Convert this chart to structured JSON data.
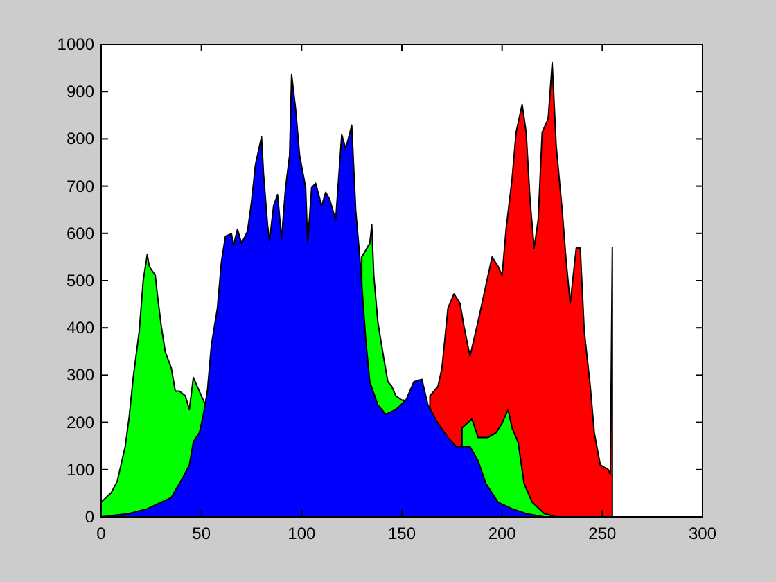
{
  "chart_data": {
    "type": "area",
    "xlim": [
      0,
      300
    ],
    "ylim": [
      0,
      1000
    ],
    "xticks": [
      0,
      50,
      100,
      150,
      200,
      250,
      300
    ],
    "yticks": [
      0,
      100,
      200,
      300,
      400,
      500,
      600,
      700,
      800,
      900,
      1000
    ],
    "grid": false,
    "series": [
      {
        "color": "#ff0000",
        "x": [
          164,
          168,
          170,
          173,
          176,
          179,
          181,
          184,
          188,
          191,
          195,
          198,
          200,
          202,
          205,
          207,
          210,
          212,
          214,
          216,
          218,
          220,
          223,
          225,
          227,
          230,
          232,
          234,
          237,
          239,
          241,
          244,
          246,
          249,
          253,
          254,
          255
        ],
        "values": [
          256,
          276,
          315,
          442,
          472,
          452,
          403,
          340,
          413,
          472,
          550,
          530,
          511,
          609,
          716,
          814,
          873,
          814,
          667,
          569,
          628,
          814,
          843,
          961,
          785,
          648,
          540,
          452,
          569,
          569,
          393,
          276,
          178,
          110,
          100,
          90,
          570
        ]
      },
      {
        "color": "#00ff00",
        "x": [
          0,
          5,
          8,
          12,
          14,
          16,
          19,
          21,
          23,
          24,
          27,
          28,
          30,
          32,
          35,
          37,
          39,
          42,
          44,
          46,
          50,
          52,
          53,
          54,
          128,
          130,
          134,
          135,
          136,
          138,
          141,
          143,
          145,
          147,
          150,
          151,
          152,
          178,
          180,
          185,
          188,
          193,
          197,
          200,
          203,
          205,
          208,
          211,
          215,
          221,
          227
        ],
        "values": [
          31,
          51,
          75,
          149,
          212,
          295,
          393,
          501,
          555,
          530,
          511,
          472,
          403,
          349,
          315,
          266,
          266,
          256,
          227,
          295,
          256,
          237,
          266,
          null,
          null,
          550,
          579,
          618,
          511,
          413,
          335,
          286,
          276,
          256,
          247,
          247,
          null,
          null,
          188,
          207,
          168,
          168,
          178,
          198,
          227,
          188,
          158,
          70,
          31,
          7,
          0
        ]
      },
      {
        "color": "#0000ff",
        "x": [
          0,
          14,
          23,
          30,
          35,
          37,
          41,
          44,
          46,
          49,
          51,
          53,
          55,
          58,
          60,
          62,
          65,
          66,
          68,
          70,
          73,
          75,
          77,
          80,
          81,
          83,
          84,
          86,
          88,
          90,
          92,
          94,
          95,
          97,
          99,
          102,
          103,
          105,
          107,
          110,
          112,
          114,
          117,
          120,
          122,
          125,
          127,
          129,
          132,
          134,
          138,
          142,
          147,
          152,
          156,
          160,
          163,
          168,
          173,
          177,
          184,
          188,
          192,
          198,
          205,
          212,
          221
        ],
        "values": [
          0,
          7,
          17,
          31,
          41,
          56,
          85,
          110,
          159,
          178,
          217,
          266,
          364,
          442,
          540,
          594,
          599,
          574,
          609,
          579,
          604,
          667,
          746,
          804,
          726,
          618,
          584,
          658,
          682,
          589,
          697,
          765,
          936,
          863,
          765,
          697,
          579,
          697,
          706,
          658,
          687,
          672,
          628,
          809,
          779,
          829,
          648,
          550,
          374,
          286,
          237,
          217,
          227,
          247,
          286,
          291,
          237,
          198,
          168,
          149,
          149,
          119,
          70,
          31,
          17,
          7,
          0
        ]
      }
    ]
  }
}
